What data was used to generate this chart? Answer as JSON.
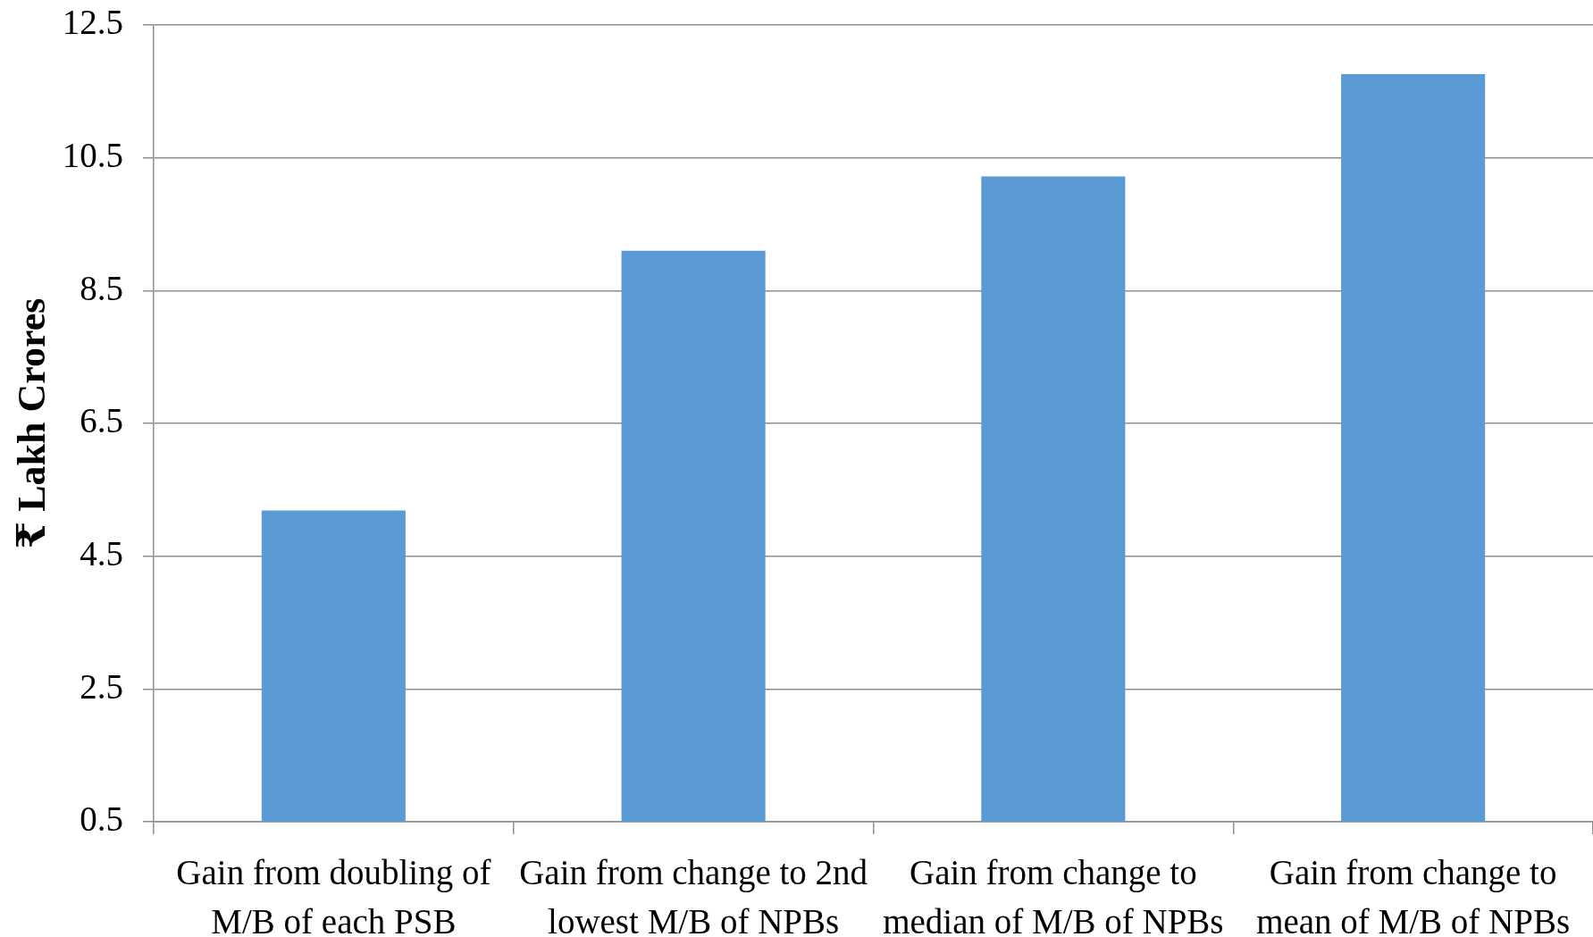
{
  "chart_data": {
    "type": "bar",
    "ylabel": "₹ Lakh Crores",
    "categories": [
      "Gain from doubling of M/B of each PSB",
      "Gain from change to 2nd lowest M/B of NPBs",
      "Gain from change to median of M/B of NPBs",
      "Gain from change to mean of M/B of NPBs"
    ],
    "values": [
      5.19,
      9.1,
      10.22,
      11.76
    ],
    "color": "#5b9bd5",
    "ylim": [
      0.5,
      12.5
    ],
    "yticks": [
      0.5,
      2.5,
      4.5,
      6.5,
      8.5,
      10.5,
      12.5
    ],
    "grid": "y"
  }
}
